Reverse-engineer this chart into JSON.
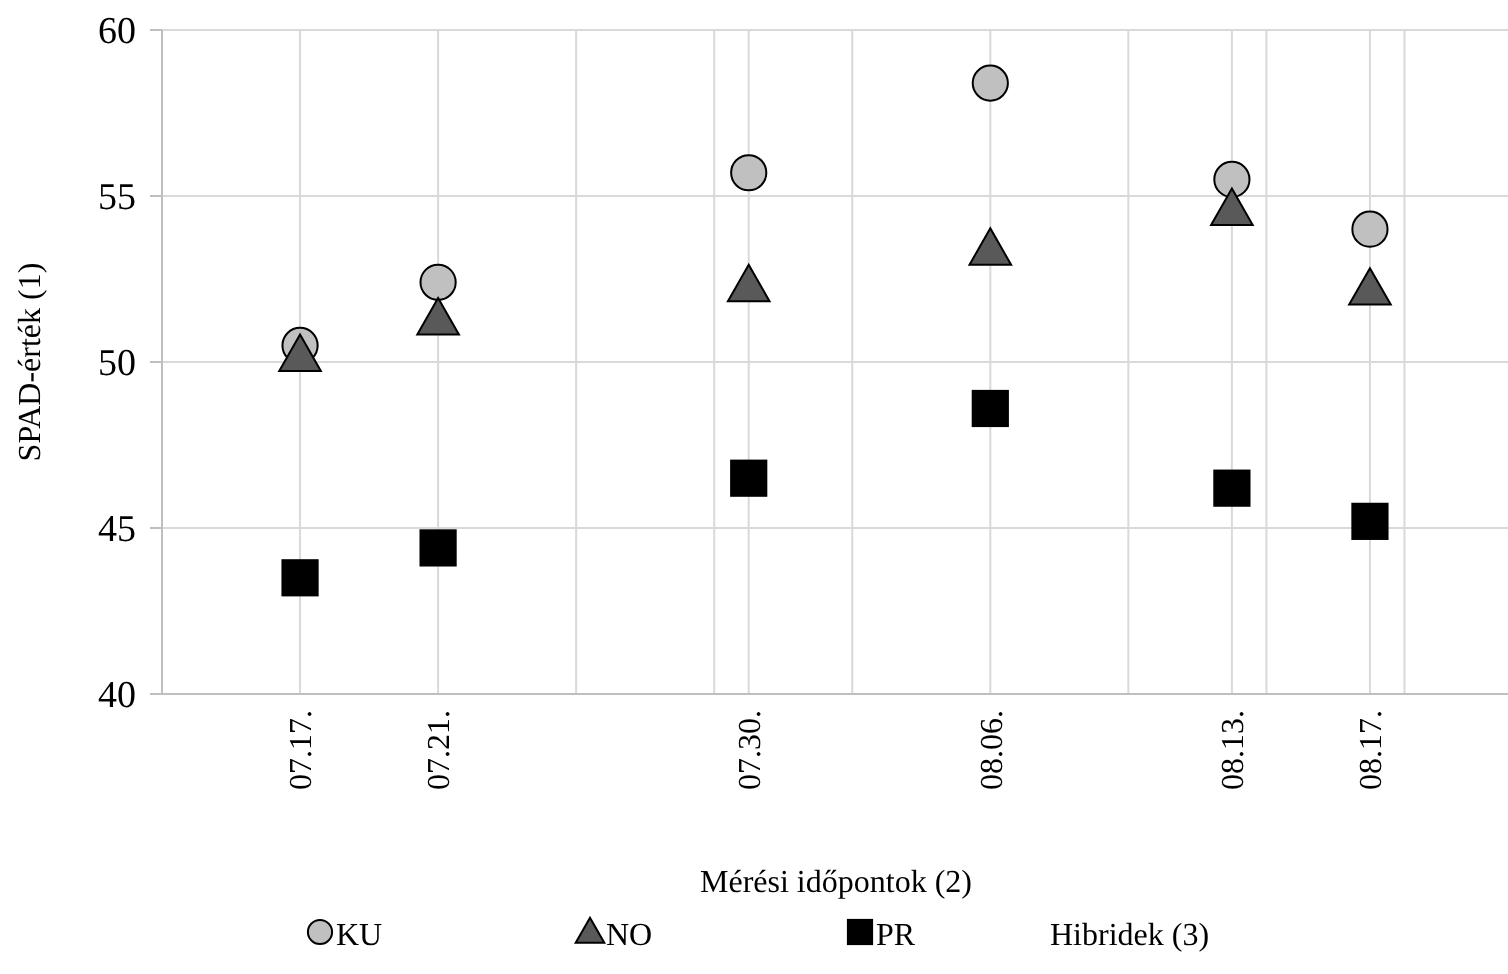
{
  "chart_data": {
    "type": "scatter",
    "xlabel": "Mérési időpontok (2)",
    "ylabel": "SPAD-érték (1)",
    "legend_title": "Hibridek (3)",
    "legend": "bottom",
    "grid": true,
    "x": [
      "--07-17",
      "--07-21",
      "--07-30",
      "--08-06",
      "--08-13",
      "--08-17"
    ],
    "xlim": [
      "--07-13",
      "--08-21"
    ],
    "xticks": [
      {
        "value": "--07-17",
        "label": "07.17."
      },
      {
        "value": "--07-21",
        "label": "07.21."
      },
      {
        "value": "--07-30",
        "label": "07.30."
      },
      {
        "value": "--08-06",
        "label": "08.06."
      },
      {
        "value": "--08-13",
        "label": "08.13."
      },
      {
        "value": "--08-17",
        "label": "08.17."
      },
      {
        "value": "--07-25",
        "label": null
      },
      {
        "value": "--07-29",
        "label": null
      },
      {
        "value": "--08-02",
        "label": null
      },
      {
        "value": "--08-10",
        "label": null
      },
      {
        "value": "--08-14",
        "label": null
      },
      {
        "value": "--08-18",
        "label": null
      }
    ],
    "ylim": [
      40,
      60
    ],
    "yticks": [
      40,
      45,
      50,
      55,
      60
    ],
    "series": [
      {
        "name": "KU",
        "color": "#c0c0c0",
        "marker": "circle",
        "values": [
          50.5,
          52.4,
          55.7,
          58.4,
          55.5,
          54.0
        ]
      },
      {
        "name": "NO",
        "color": "#595959",
        "marker": "triangle",
        "values": [
          50.2,
          51.3,
          52.3,
          53.4,
          54.6,
          52.2
        ]
      },
      {
        "name": "PR",
        "color": "#000000",
        "marker": "square",
        "values": [
          43.5,
          44.4,
          46.5,
          48.6,
          46.2,
          45.2
        ]
      }
    ]
  }
}
